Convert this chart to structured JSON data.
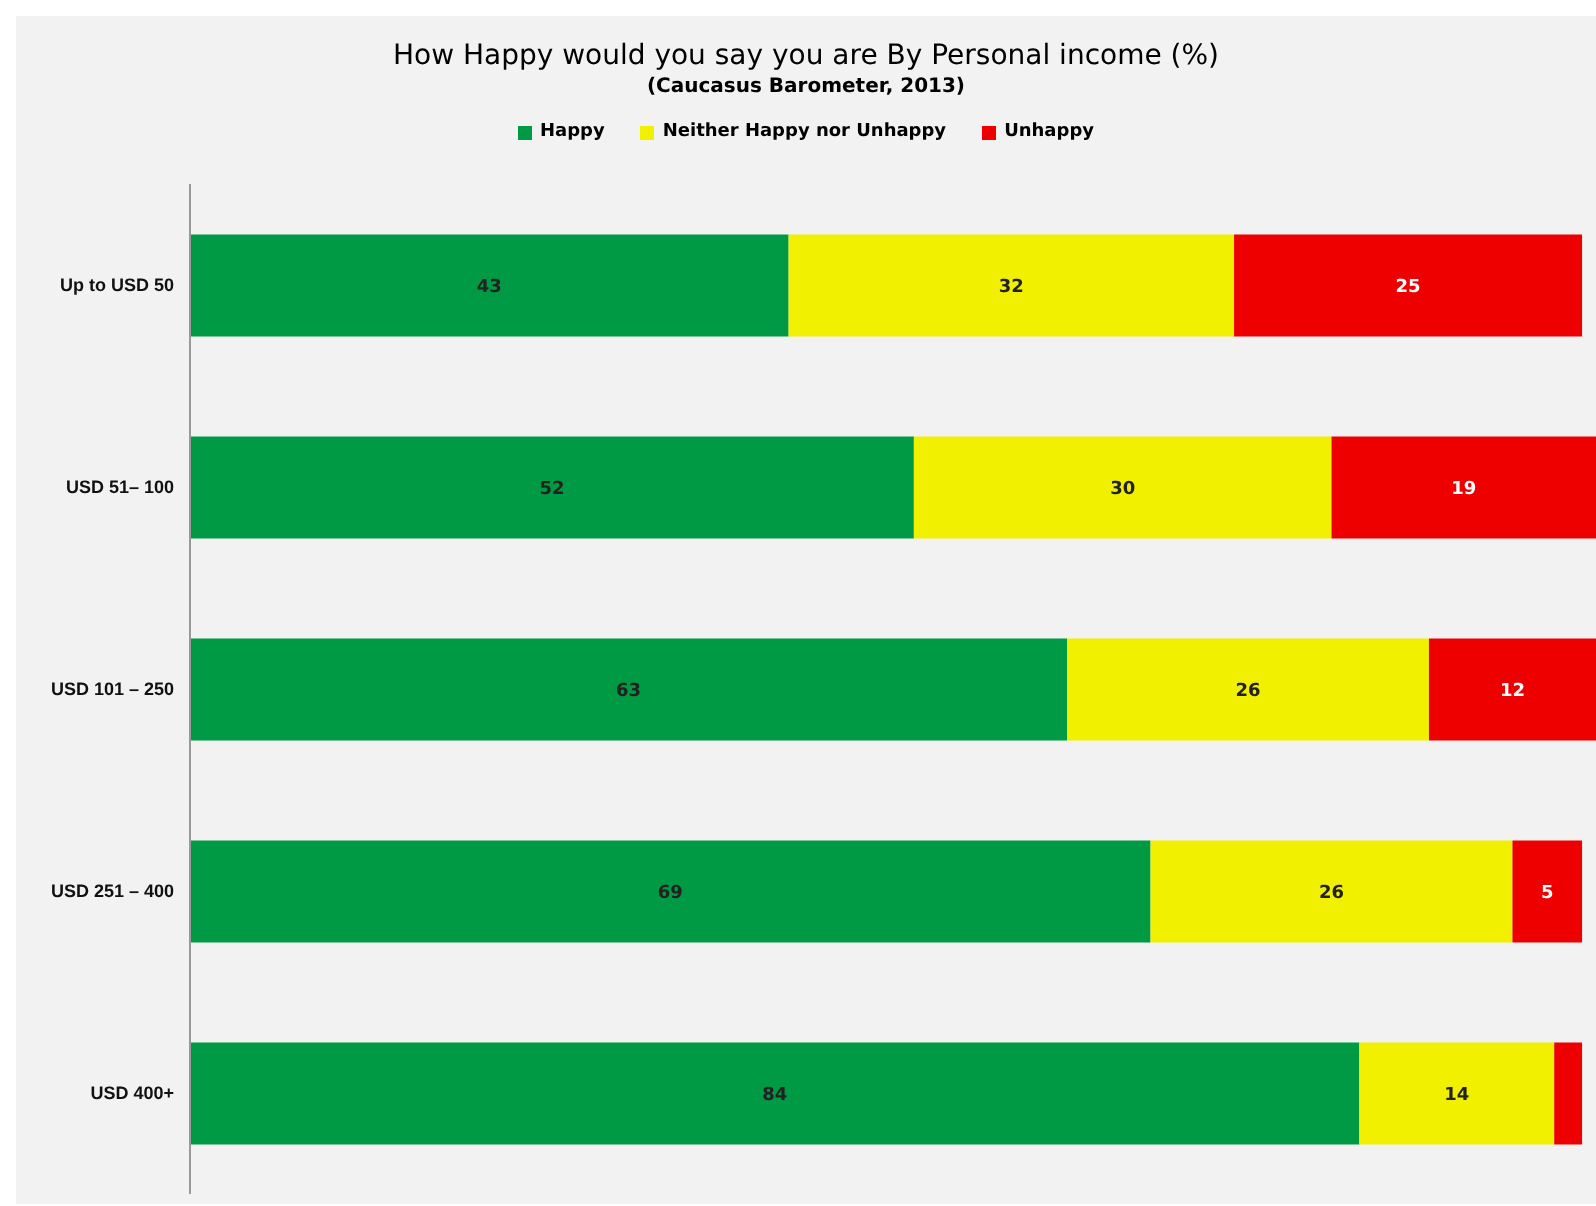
{
  "chart_data": {
    "type": "bar",
    "orientation": "horizontal",
    "stacked": true,
    "title": "How Happy would you say you are By Personal income (%)",
    "subtitle": "(Caucasus Barometer, 2013)",
    "categories": [
      "Up to USD 50",
      "USD 51– 100",
      "USD 101 – 250",
      "USD 251 – 400",
      "USD 400+"
    ],
    "xlim": [
      0,
      101
    ],
    "legend": "top",
    "series": [
      {
        "name": "Happy",
        "color": "#009a44",
        "values": [
          43,
          52,
          63,
          69,
          84
        ],
        "value_labels": [
          "43",
          "52",
          "63",
          "69",
          "84"
        ]
      },
      {
        "name": "Neither Happy nor Unhappy",
        "color": "#f0f000",
        "values": [
          32,
          30,
          26,
          26,
          14
        ],
        "value_labels": [
          "32",
          "30",
          "26",
          "26",
          "14"
        ]
      },
      {
        "name": "Unhappy",
        "color": "#ee0000",
        "values": [
          25,
          19,
          12,
          5,
          2
        ],
        "value_labels": [
          "25",
          "19",
          "12",
          "5",
          null
        ]
      }
    ]
  }
}
